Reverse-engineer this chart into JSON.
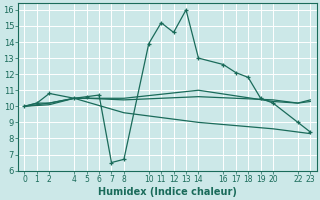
{
  "xlabel": "Humidex (Indice chaleur)",
  "bg_color": "#cce8e8",
  "grid_color": "#ffffff",
  "line_color": "#1a6b5a",
  "xlim": [
    -0.5,
    23.5
  ],
  "ylim": [
    6,
    16.4
  ],
  "yticks": [
    6,
    7,
    8,
    9,
    10,
    11,
    12,
    13,
    14,
    15,
    16
  ],
  "xticks": [
    0,
    1,
    2,
    4,
    5,
    6,
    7,
    8,
    10,
    11,
    12,
    13,
    14,
    16,
    17,
    18,
    19,
    20,
    22,
    23
  ],
  "lines": [
    {
      "x": [
        0,
        1,
        2,
        4,
        5,
        6,
        7,
        8,
        10,
        11,
        12,
        13,
        14,
        16,
        17,
        18,
        19,
        20,
        22,
        23
      ],
      "y": [
        10.0,
        10.2,
        10.8,
        10.5,
        10.6,
        10.7,
        6.5,
        6.7,
        13.9,
        15.2,
        14.6,
        16.0,
        13.0,
        12.6,
        12.1,
        11.8,
        10.5,
        10.2,
        9.0,
        8.4
      ],
      "marker": true
    },
    {
      "x": [
        0,
        1,
        2,
        4,
        5,
        8,
        14,
        20,
        22,
        23
      ],
      "y": [
        10.0,
        10.2,
        10.2,
        10.5,
        10.5,
        10.5,
        11.0,
        10.3,
        10.2,
        10.4
      ],
      "marker": false
    },
    {
      "x": [
        0,
        1,
        2,
        4,
        5,
        8,
        14,
        20,
        22,
        23
      ],
      "y": [
        10.0,
        10.1,
        10.2,
        10.5,
        10.5,
        10.4,
        10.6,
        10.4,
        10.2,
        10.3
      ],
      "marker": false
    },
    {
      "x": [
        0,
        2,
        4,
        8,
        14,
        20,
        22,
        23
      ],
      "y": [
        10.0,
        10.1,
        10.5,
        9.6,
        9.0,
        8.6,
        8.4,
        8.3
      ],
      "marker": false
    }
  ]
}
